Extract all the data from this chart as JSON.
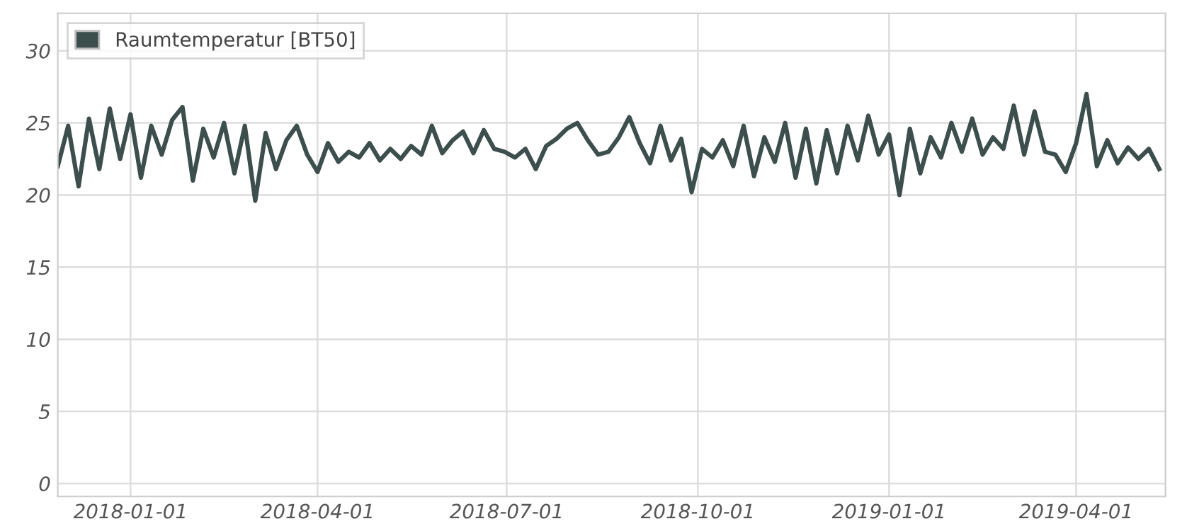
{
  "chart_data": {
    "type": "line",
    "x": [
      "2017-11-27",
      "2017-12-02",
      "2017-12-07",
      "2017-12-12",
      "2017-12-17",
      "2017-12-22",
      "2017-12-27",
      "2018-01-01",
      "2018-01-06",
      "2018-01-11",
      "2018-01-16",
      "2018-01-21",
      "2018-01-26",
      "2018-01-31",
      "2018-02-05",
      "2018-02-10",
      "2018-02-15",
      "2018-02-20",
      "2018-02-25",
      "2018-03-02",
      "2018-03-07",
      "2018-03-12",
      "2018-03-17",
      "2018-03-22",
      "2018-03-27",
      "2018-04-01",
      "2018-04-06",
      "2018-04-11",
      "2018-04-16",
      "2018-04-21",
      "2018-04-26",
      "2018-05-01",
      "2018-05-06",
      "2018-05-11",
      "2018-05-16",
      "2018-05-21",
      "2018-05-26",
      "2018-05-31",
      "2018-06-05",
      "2018-06-10",
      "2018-06-15",
      "2018-06-20",
      "2018-06-25",
      "2018-06-30",
      "2018-07-05",
      "2018-07-10",
      "2018-07-15",
      "2018-07-20",
      "2018-07-25",
      "2018-07-30",
      "2018-08-04",
      "2018-08-09",
      "2018-08-14",
      "2018-08-19",
      "2018-08-24",
      "2018-08-29",
      "2018-09-03",
      "2018-09-08",
      "2018-09-13",
      "2018-09-18",
      "2018-09-23",
      "2018-09-28",
      "2018-10-03",
      "2018-10-08",
      "2018-10-13",
      "2018-10-18",
      "2018-10-23",
      "2018-10-28",
      "2018-11-02",
      "2018-11-07",
      "2018-11-12",
      "2018-11-17",
      "2018-11-22",
      "2018-11-27",
      "2018-12-02",
      "2018-12-07",
      "2018-12-12",
      "2018-12-17",
      "2018-12-22",
      "2018-12-27",
      "2019-01-01",
      "2019-01-06",
      "2019-01-11",
      "2019-01-16",
      "2019-01-21",
      "2019-01-26",
      "2019-01-31",
      "2019-02-05",
      "2019-02-10",
      "2019-02-15",
      "2019-02-20",
      "2019-02-25",
      "2019-03-02",
      "2019-03-07",
      "2019-03-12",
      "2019-03-17",
      "2019-03-22",
      "2019-03-27",
      "2019-04-01",
      "2019-04-06",
      "2019-04-11",
      "2019-04-16",
      "2019-04-21",
      "2019-04-26",
      "2019-05-01",
      "2019-05-06",
      "2019-05-11"
    ],
    "series": [
      {
        "name": "Raumtemperatur [BT50]",
        "color": "#3d4f4c",
        "values": [
          22.0,
          24.8,
          20.6,
          25.3,
          21.8,
          26.0,
          22.5,
          25.6,
          21.2,
          24.8,
          22.8,
          25.2,
          26.1,
          21.0,
          24.6,
          22.6,
          25.0,
          21.5,
          24.8,
          19.6,
          24.3,
          21.8,
          23.8,
          24.8,
          22.8,
          21.6,
          23.6,
          22.3,
          23.0,
          22.6,
          23.6,
          22.4,
          23.2,
          22.5,
          23.4,
          22.8,
          24.8,
          22.9,
          23.8,
          24.4,
          22.9,
          24.5,
          23.2,
          23.0,
          22.6,
          23.2,
          21.8,
          23.4,
          23.9,
          24.6,
          25.0,
          23.8,
          22.8,
          23.0,
          24.0,
          25.4,
          23.6,
          22.2,
          24.8,
          22.4,
          23.9,
          20.2,
          23.2,
          22.6,
          23.8,
          22.0,
          24.8,
          21.3,
          24.0,
          22.3,
          25.0,
          21.2,
          24.6,
          20.8,
          24.5,
          21.5,
          24.8,
          22.4,
          25.5,
          22.8,
          24.2,
          20.0,
          24.6,
          21.5,
          24.0,
          22.6,
          25.0,
          23.0,
          25.3,
          22.8,
          24.0,
          23.2,
          26.2,
          22.8,
          25.8,
          23.0,
          22.8,
          21.6,
          23.6,
          27.0,
          22.0,
          23.8,
          22.2,
          23.3,
          22.5,
          23.2,
          21.8
        ]
      }
    ],
    "xlim": [
      "2017-11-27",
      "2019-05-14"
    ],
    "xticks": [
      "2018-01-01",
      "2018-04-01",
      "2018-07-01",
      "2018-10-01",
      "2019-01-01",
      "2019-04-01"
    ],
    "ylim": [
      -0.9,
      32.6
    ],
    "yticks": [
      0,
      5,
      10,
      15,
      20,
      25,
      30
    ],
    "grid": true,
    "legend": "top left",
    "marker": "none",
    "line_style": "solid"
  }
}
